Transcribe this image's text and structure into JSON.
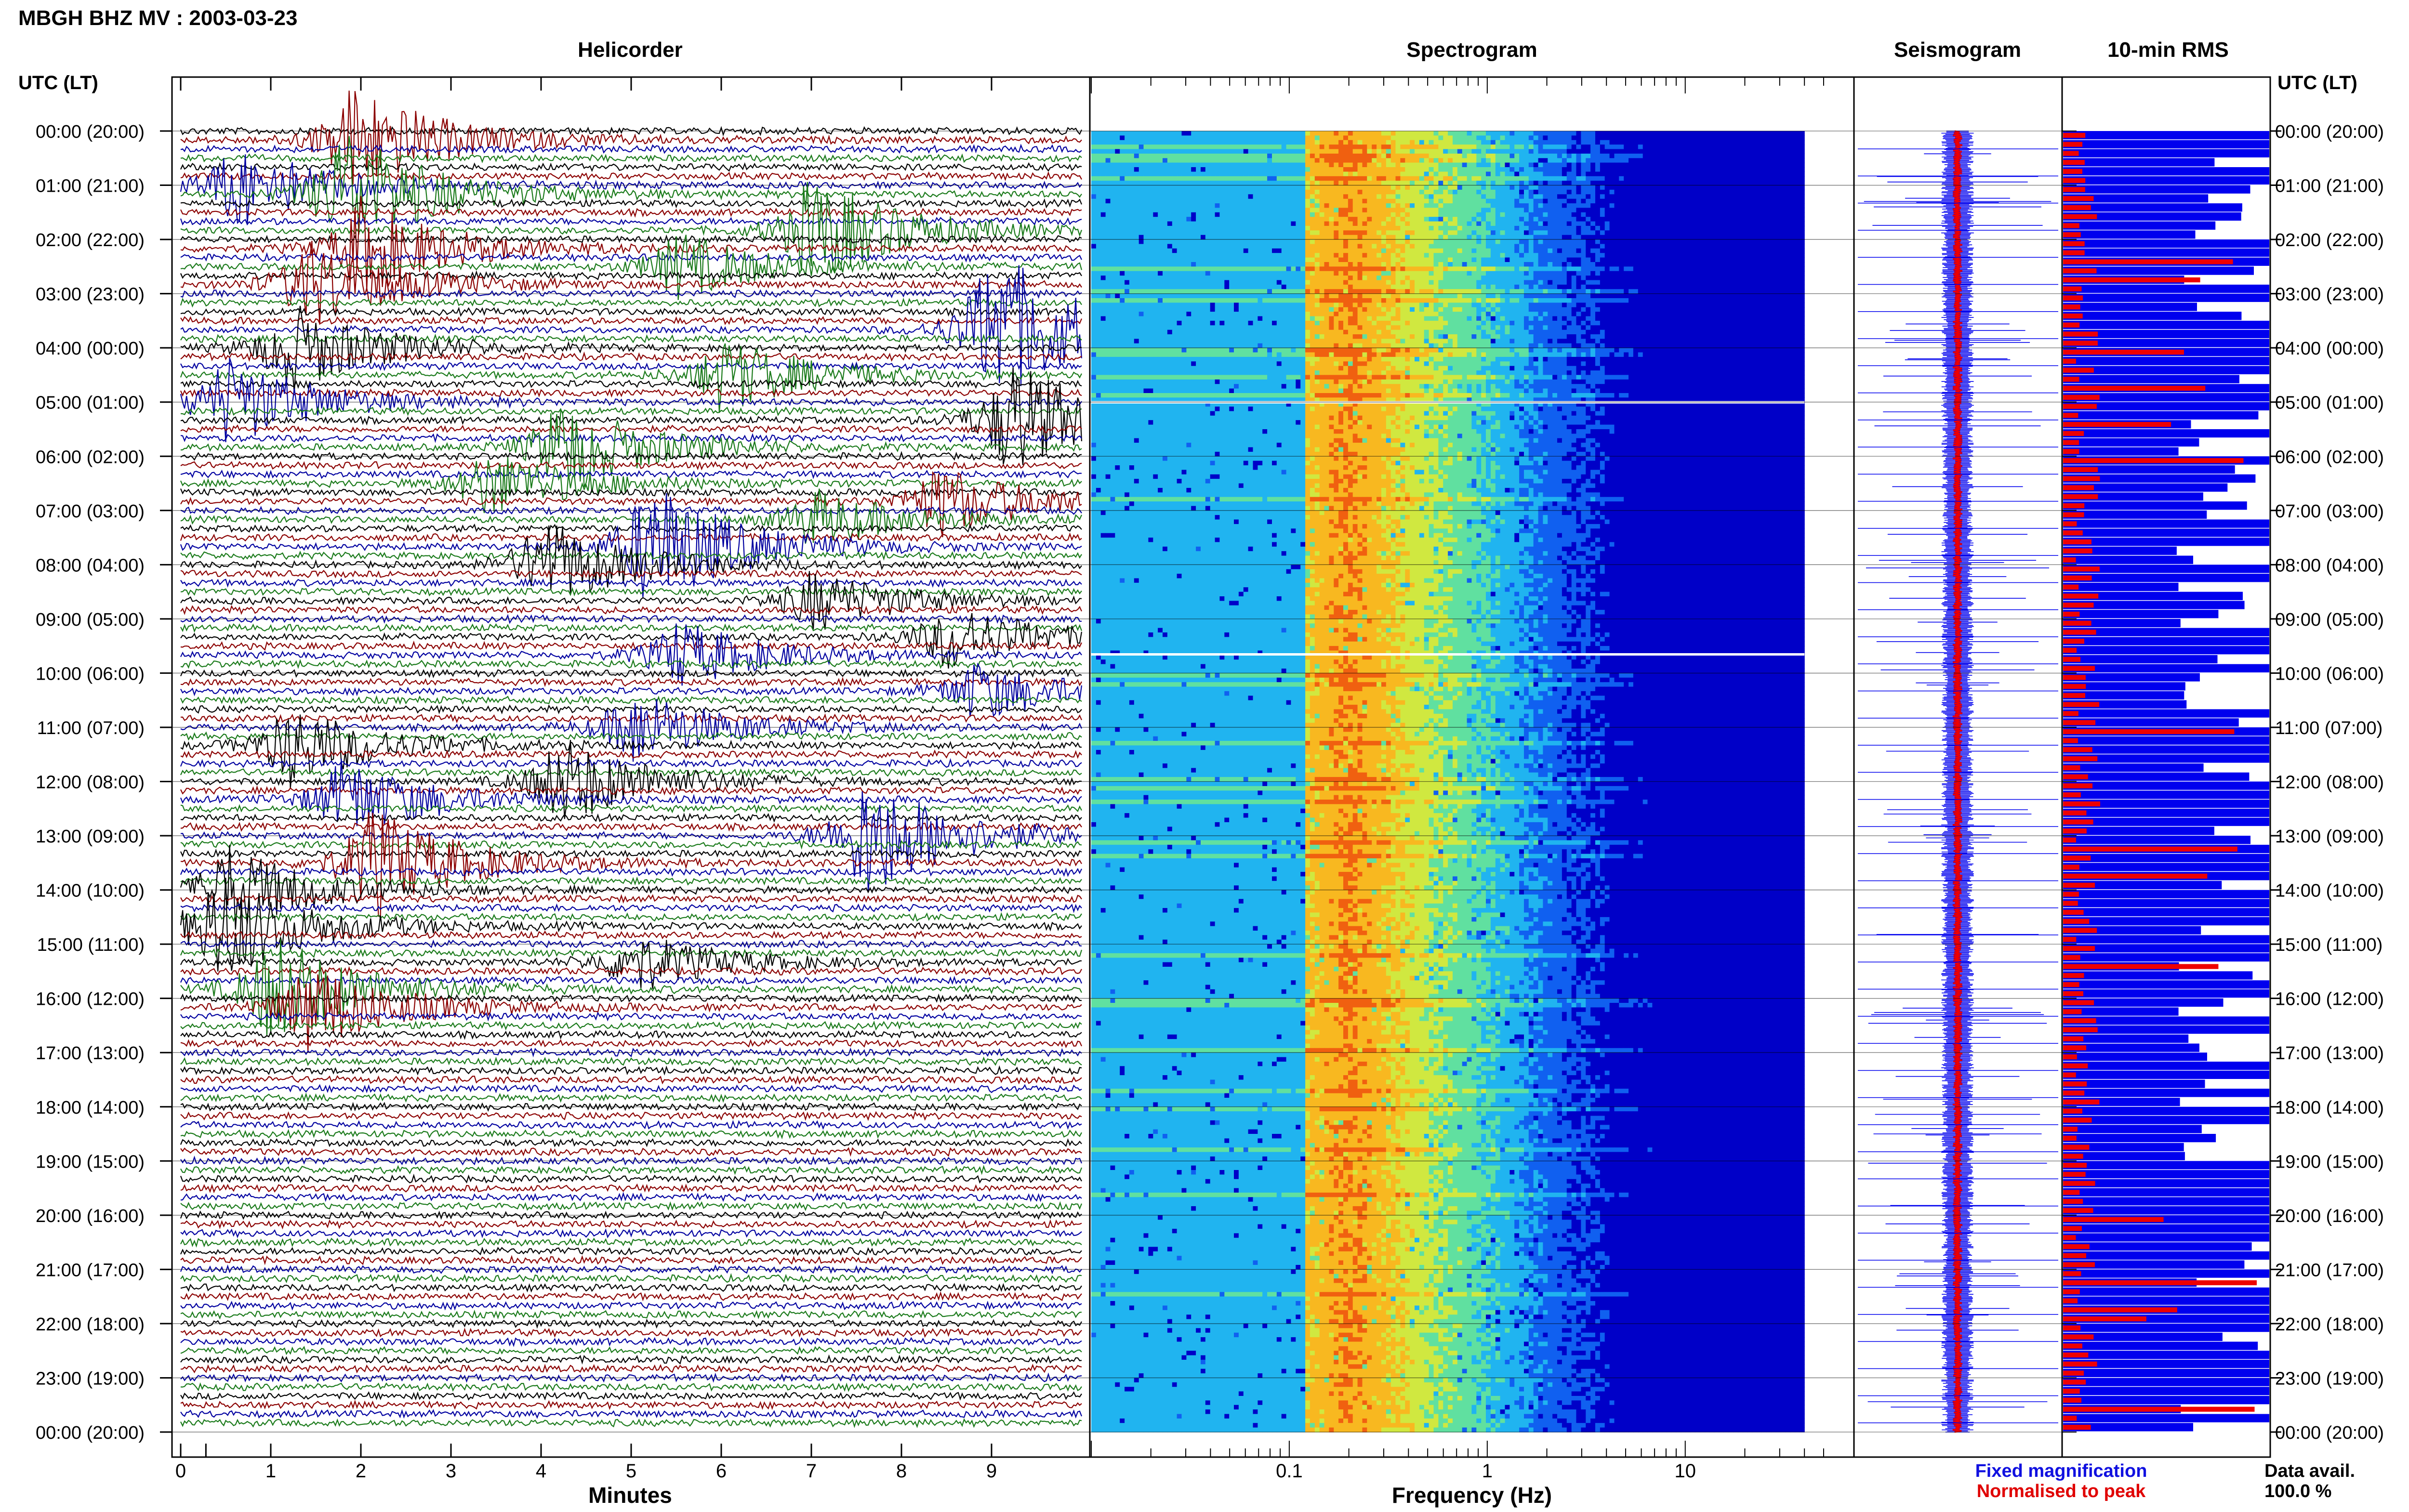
{
  "page": {
    "title": "MBGH BHZ MV : 2003-03-23",
    "utc_label": "UTC (LT)",
    "utc_label_right": "UTC (LT)",
    "panels": {
      "helicorder": "Helicorder",
      "spectrogram": "Spectrogram",
      "seismogram": "Seismogram",
      "rms": "10-min RMS"
    },
    "xlabels": {
      "helicorder": "Minutes",
      "spectrogram": "Frequency (Hz)"
    },
    "legend": {
      "fixed": "Fixed magnification",
      "normalised": "Normalised to peak",
      "fixed_color": "#1010e0",
      "normalised_color": "#e00000"
    },
    "data_avail_label": "Data avail.",
    "data_avail_value": "100.0 %"
  },
  "colors": {
    "trace_cycle": [
      "#000000",
      "#8b0000",
      "#0000a0",
      "#1a7a1a"
    ],
    "rms_fixed": "#0000ee",
    "rms_norm": "#ee0000",
    "seis_fixed": "#0000ee",
    "seis_norm": "#ee0000"
  },
  "chart_data": [
    {
      "type": "line",
      "name": "helicorder",
      "title": "Helicorder",
      "xlabel": "Minutes",
      "xticks": [
        "0",
        "1",
        "2",
        "3",
        "4",
        "5",
        "6",
        "7",
        "8",
        "9"
      ],
      "xlim": [
        0,
        10
      ],
      "rows_per_hour": 6,
      "hours": 24,
      "time_labels": [
        "00:00 (20:00)",
        "01:00 (21:00)",
        "02:00 (22:00)",
        "03:00 (23:00)",
        "04:00 (00:00)",
        "05:00 (01:00)",
        "06:00 (02:00)",
        "07:00 (03:00)",
        "08:00 (04:00)",
        "09:00 (05:00)",
        "10:00 (06:00)",
        "11:00 (07:00)",
        "12:00 (08:00)",
        "13:00 (09:00)",
        "14:00 (10:00)",
        "15:00 (11:00)",
        "16:00 (12:00)",
        "17:00 (13:00)",
        "18:00 (14:00)",
        "19:00 (15:00)",
        "20:00 (16:00)",
        "21:00 (17:00)",
        "22:00 (18:00)",
        "23:00 (19:00)",
        "00:00 (20:00)"
      ],
      "events": [
        {
          "row": 1,
          "minute": 1.9,
          "amp": 3.0
        },
        {
          "row": 6,
          "minute": 0.6,
          "amp": 2.2
        },
        {
          "row": 7,
          "minute": 1.8,
          "amp": 3.5
        },
        {
          "row": 11,
          "minute": 7.0,
          "amp": 3.0
        },
        {
          "row": 13,
          "minute": 2.0,
          "amp": 2.6
        },
        {
          "row": 15,
          "minute": 5.5,
          "amp": 1.8
        },
        {
          "row": 17,
          "minute": 1.4,
          "amp": 2.4
        },
        {
          "row": 22,
          "minute": 9.0,
          "amp": 4.5
        },
        {
          "row": 24,
          "minute": 1.2,
          "amp": 2.4
        },
        {
          "row": 27,
          "minute": 6.0,
          "amp": 2.0
        },
        {
          "row": 30,
          "minute": 0.5,
          "amp": 2.4
        },
        {
          "row": 32,
          "minute": 9.2,
          "amp": 3.2
        },
        {
          "row": 35,
          "minute": 4.2,
          "amp": 2.6
        },
        {
          "row": 39,
          "minute": 3.4,
          "amp": 1.8
        },
        {
          "row": 41,
          "minute": 8.4,
          "amp": 2.0
        },
        {
          "row": 43,
          "minute": 7.0,
          "amp": 1.6
        },
        {
          "row": 46,
          "minute": 5.2,
          "amp": 3.6
        },
        {
          "row": 48,
          "minute": 4.0,
          "amp": 2.4
        },
        {
          "row": 52,
          "minute": 7.0,
          "amp": 1.6
        },
        {
          "row": 56,
          "minute": 8.5,
          "amp": 1.8
        },
        {
          "row": 58,
          "minute": 5.5,
          "amp": 1.8
        },
        {
          "row": 62,
          "minute": 8.8,
          "amp": 1.6
        },
        {
          "row": 66,
          "minute": 5.0,
          "amp": 2.0
        },
        {
          "row": 68,
          "minute": 1.2,
          "amp": 2.2
        },
        {
          "row": 72,
          "minute": 4.2,
          "amp": 2.4
        },
        {
          "row": 74,
          "minute": 1.8,
          "amp": 2.2
        },
        {
          "row": 78,
          "minute": 7.6,
          "amp": 3.4
        },
        {
          "row": 81,
          "minute": 2.1,
          "amp": 3.0
        },
        {
          "row": 84,
          "minute": 0.5,
          "amp": 2.4
        },
        {
          "row": 88,
          "minute": 0.4,
          "amp": 3.0
        },
        {
          "row": 92,
          "minute": 5.0,
          "amp": 1.6
        },
        {
          "row": 95,
          "minute": 1.0,
          "amp": 3.0
        },
        {
          "row": 97,
          "minute": 1.4,
          "amp": 2.4
        }
      ]
    },
    {
      "type": "heatmap",
      "name": "spectrogram",
      "title": "Spectrogram",
      "xlabel": "Frequency (Hz)",
      "xscale": "log",
      "xlim": [
        0.01,
        50
      ],
      "xticks": [
        {
          "value": 0.1,
          "label": "0.1"
        },
        {
          "value": 1,
          "label": "1"
        },
        {
          "value": 10,
          "label": "10"
        }
      ],
      "data_fmax": 40,
      "peak_frequency_hz": 0.2,
      "colormap": [
        "#0000c8",
        "#1060f0",
        "#20b4f0",
        "#60e0a0",
        "#d0e840",
        "#f8b820",
        "#f06010"
      ],
      "gap_hours": [
        5,
        9.65
      ]
    },
    {
      "type": "line",
      "name": "seismogram",
      "title": "Seismogram",
      "series": [
        {
          "name": "Fixed magnification",
          "color": "#0000ee"
        },
        {
          "name": "Normalised to peak",
          "color": "#ee0000"
        }
      ]
    },
    {
      "type": "bar",
      "name": "rms",
      "title": "10-min RMS",
      "orientation": "horizontal",
      "bins": 144,
      "series": [
        {
          "name": "Fixed magnification",
          "color": "#0000ee",
          "description": "fraction of panel width, mostly saturated"
        },
        {
          "name": "Normalised to peak",
          "color": "#ee0000"
        }
      ]
    }
  ]
}
